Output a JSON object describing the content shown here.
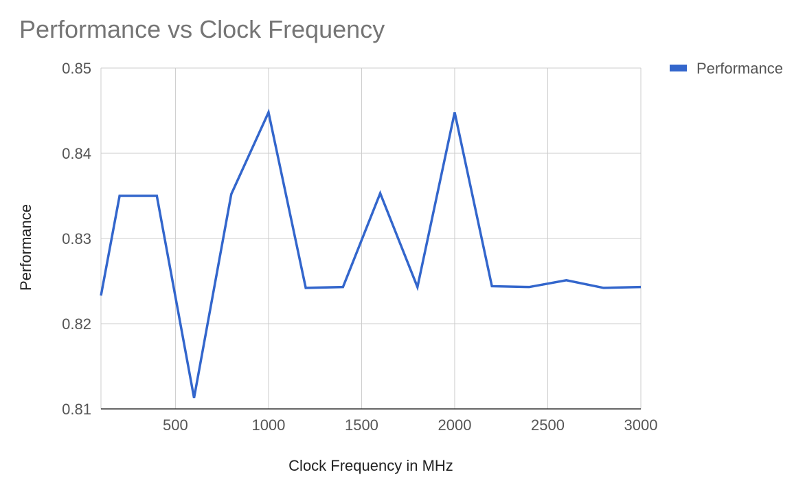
{
  "chart_data": {
    "type": "line",
    "title": "Performance vs Clock Frequency",
    "xlabel": "Clock Frequency in MHz",
    "ylabel": "Performance",
    "xlim": [
      100,
      3000
    ],
    "ylim": [
      0.81,
      0.85
    ],
    "xticks": [
      500,
      1000,
      1500,
      2000,
      2500,
      3000
    ],
    "yticks": [
      0.81,
      0.82,
      0.83,
      0.84,
      0.85
    ],
    "grid": true,
    "legend_position": "right",
    "series": [
      {
        "name": "Performance",
        "color": "#3366cc",
        "points": [
          {
            "x": 100,
            "y": 0.8233
          },
          {
            "x": 200,
            "y": 0.835
          },
          {
            "x": 400,
            "y": 0.835
          },
          {
            "x": 600,
            "y": 0.8113
          },
          {
            "x": 800,
            "y": 0.8352
          },
          {
            "x": 1000,
            "y": 0.8448
          },
          {
            "x": 1200,
            "y": 0.8242
          },
          {
            "x": 1400,
            "y": 0.8243
          },
          {
            "x": 1600,
            "y": 0.8353
          },
          {
            "x": 1800,
            "y": 0.8243
          },
          {
            "x": 2000,
            "y": 0.8448
          },
          {
            "x": 2200,
            "y": 0.8244
          },
          {
            "x": 2400,
            "y": 0.8243
          },
          {
            "x": 2600,
            "y": 0.8251
          },
          {
            "x": 2800,
            "y": 0.8242
          },
          {
            "x": 3000,
            "y": 0.8243
          }
        ]
      }
    ]
  }
}
